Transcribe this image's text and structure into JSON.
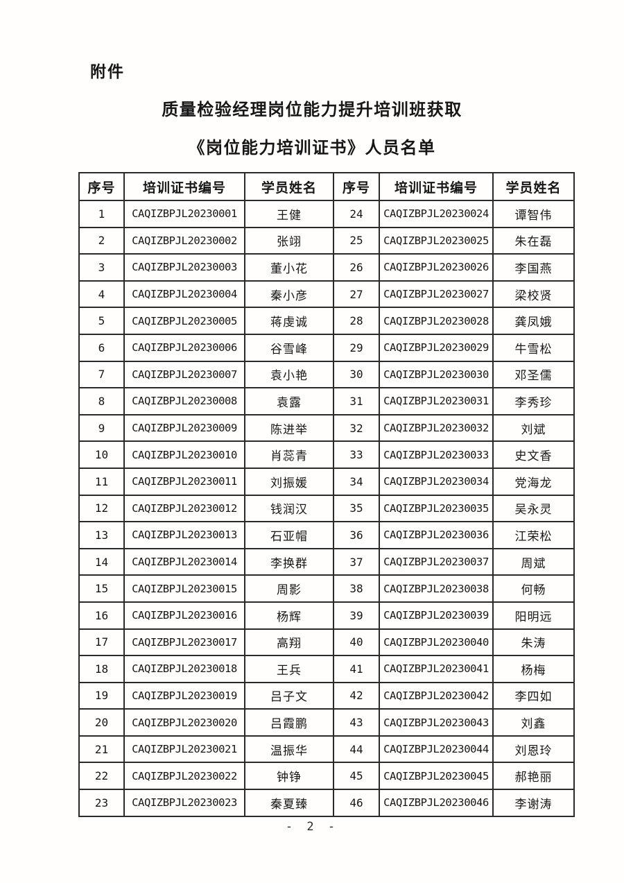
{
  "attachment_label": "附件",
  "title_line1": "质量检验经理岗位能力提升培训班获取",
  "title_line2": "《岗位能力培训证书》人员名单",
  "table": {
    "headers": [
      "序号",
      "培训证书编号",
      "学员姓名",
      "序号",
      "培训证书编号",
      "学员姓名"
    ],
    "rows": [
      [
        "1",
        "CAQIZBPJL20230001",
        "王健",
        "24",
        "CAQIZBPJL20230024",
        "谭智伟"
      ],
      [
        "2",
        "CAQIZBPJL20230002",
        "张翊",
        "25",
        "CAQIZBPJL20230025",
        "朱在磊"
      ],
      [
        "3",
        "CAQIZBPJL20230003",
        "董小花",
        "26",
        "CAQIZBPJL20230026",
        "李国燕"
      ],
      [
        "4",
        "CAQIZBPJL20230004",
        "秦小彦",
        "27",
        "CAQIZBPJL20230027",
        "梁校贤"
      ],
      [
        "5",
        "CAQIZBPJL20230005",
        "蒋虔诚",
        "28",
        "CAQIZBPJL20230028",
        "龚凤娥"
      ],
      [
        "6",
        "CAQIZBPJL20230006",
        "谷雪峰",
        "29",
        "CAQIZBPJL20230029",
        "牛雪松"
      ],
      [
        "7",
        "CAQIZBPJL20230007",
        "袁小艳",
        "30",
        "CAQIZBPJL20230030",
        "邓圣儒"
      ],
      [
        "8",
        "CAQIZBPJL20230008",
        "袁露",
        "31",
        "CAQIZBPJL20230031",
        "李秀珍"
      ],
      [
        "9",
        "CAQIZBPJL20230009",
        "陈进举",
        "32",
        "CAQIZBPJL20230032",
        "刘斌"
      ],
      [
        "10",
        "CAQIZBPJL20230010",
        "肖蕊青",
        "33",
        "CAQIZBPJL20230033",
        "史文香"
      ],
      [
        "11",
        "CAQIZBPJL20230011",
        "刘振媛",
        "34",
        "CAQIZBPJL20230034",
        "党海龙"
      ],
      [
        "12",
        "CAQIZBPJL20230012",
        "钱润汉",
        "35",
        "CAQIZBPJL20230035",
        "吴永灵"
      ],
      [
        "13",
        "CAQIZBPJL20230013",
        "石亚帽",
        "36",
        "CAQIZBPJL20230036",
        "江荣松"
      ],
      [
        "14",
        "CAQIZBPJL20230014",
        "李换群",
        "37",
        "CAQIZBPJL20230037",
        "周斌"
      ],
      [
        "15",
        "CAQIZBPJL20230015",
        "周影",
        "38",
        "CAQIZBPJL20230038",
        "何畅"
      ],
      [
        "16",
        "CAQIZBPJL20230016",
        "杨辉",
        "39",
        "CAQIZBPJL20230039",
        "阳明远"
      ],
      [
        "17",
        "CAQIZBPJL20230017",
        "高翔",
        "40",
        "CAQIZBPJL20230040",
        "朱涛"
      ],
      [
        "18",
        "CAQIZBPJL20230018",
        "王兵",
        "41",
        "CAQIZBPJL20230041",
        "杨梅"
      ],
      [
        "19",
        "CAQIZBPJL20230019",
        "吕子文",
        "42",
        "CAQIZBPJL20230042",
        "李四如"
      ],
      [
        "20",
        "CAQIZBPJL20230020",
        "吕霞鹏",
        "43",
        "CAQIZBPJL20230043",
        "刘鑫"
      ],
      [
        "21",
        "CAQIZBPJL20230021",
        "温振华",
        "44",
        "CAQIZBPJL20230044",
        "刘恩玲"
      ],
      [
        "22",
        "CAQIZBPJL20230022",
        "钟铮",
        "45",
        "CAQIZBPJL20230045",
        "郝艳丽"
      ],
      [
        "23",
        "CAQIZBPJL20230023",
        "秦夏臻",
        "46",
        "CAQIZBPJL20230046",
        "李谢涛"
      ]
    ]
  },
  "page_number": "- 2 -"
}
